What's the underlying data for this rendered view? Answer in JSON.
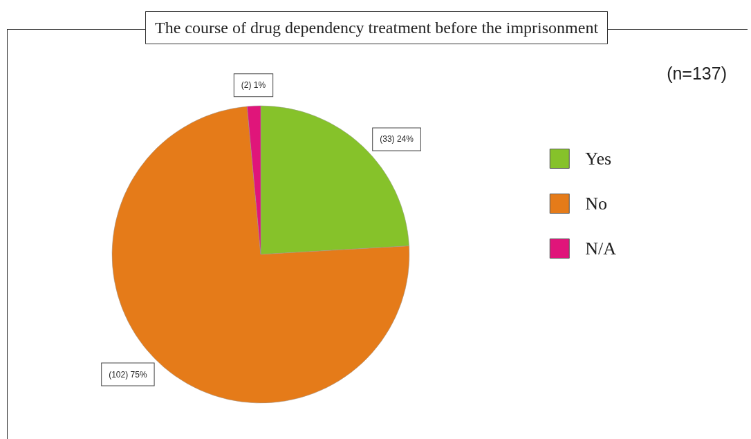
{
  "chart_data": {
    "type": "pie",
    "title": "The course of drug dependency treatment before the imprisonment",
    "categories": [
      "Yes",
      "No",
      "N/A"
    ],
    "values": [
      33,
      102,
      2
    ],
    "colors": [
      "#86c22a",
      "#e57b19",
      "#e0157a"
    ],
    "value_labels": [
      "(33) 24%",
      "(102) 75%",
      "(2) 1%"
    ],
    "annotations": [
      "(n=137)"
    ],
    "legend": "right"
  }
}
